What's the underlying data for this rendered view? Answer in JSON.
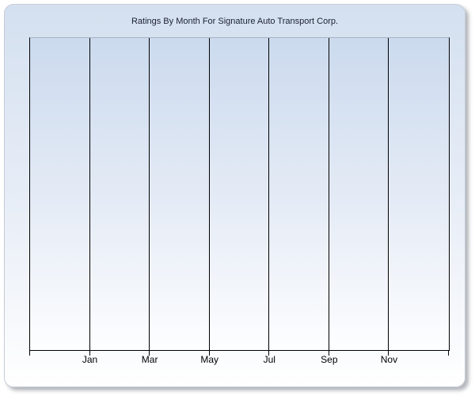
{
  "chart_panel": {
    "title": "Ratings By Month For Signature Auto Transport Corp."
  },
  "chart_data": {
    "type": "line",
    "title": "Ratings By Month For Signature Auto Transport Corp.",
    "x_tick_labels": [
      "Jan",
      "Mar",
      "May",
      "Jul",
      "Sep",
      "Nov"
    ],
    "x_axis_intervals": 7,
    "series": [],
    "data_points_visible": false,
    "y_tick_labels": [],
    "ylabel": "",
    "xlabel": "",
    "grid": "vertical-gridlines-only",
    "legend": "none"
  },
  "colors": {
    "panel_border": "#c6cdd9",
    "panel_gradient_top": "#d4e0f0",
    "panel_gradient_bottom": "#ffffff",
    "plot_gradient_top": "#cbdaee",
    "plot_gradient_bottom": "#fdfeff",
    "gridline": "#000000",
    "plot_top_border": "#a9b1c1",
    "title_text": "#1a2030",
    "axis_label_text": "#000000"
  }
}
